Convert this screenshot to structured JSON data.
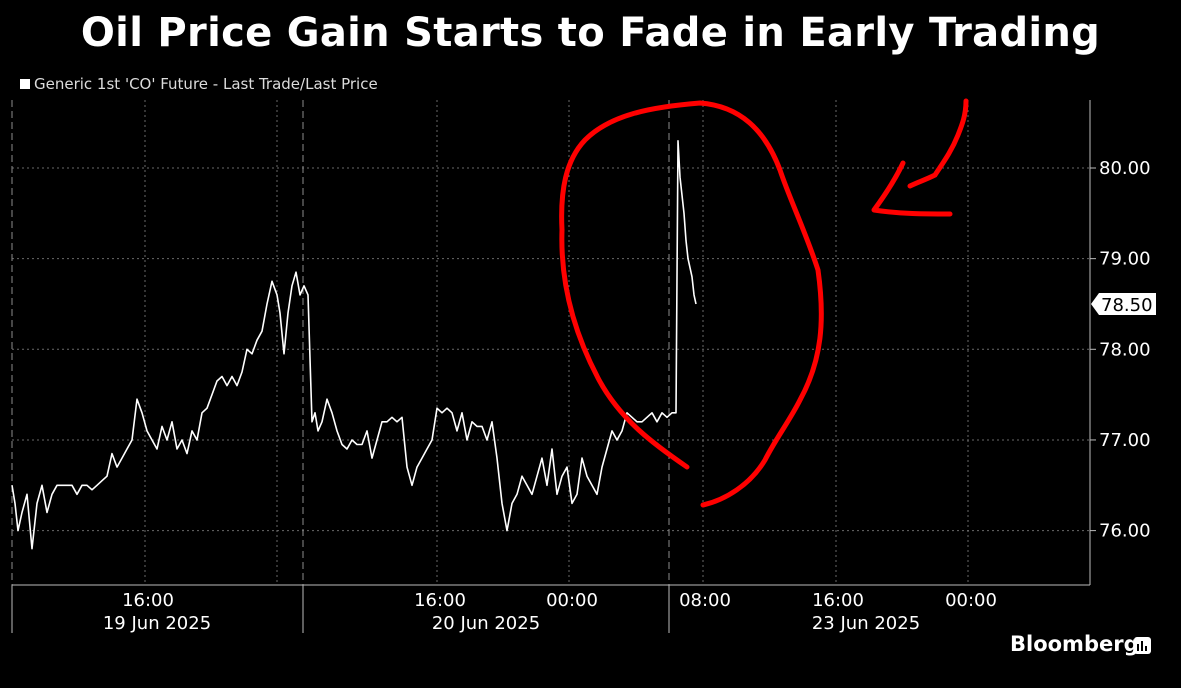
{
  "chart_data": {
    "type": "line",
    "title": "Oil Price Gain Starts to Fade in Early Trading",
    "legend": {
      "label": "Generic 1st 'CO' Future - Last Trade/Last Price",
      "position": "top-left"
    },
    "y_axis": {
      "ylim": [
        75.4,
        80.75
      ],
      "side": "right",
      "ticks": [
        "76.00",
        "77.00",
        "78.00",
        "79.00",
        "80.00"
      ]
    },
    "x_axis": {
      "time_labels": [
        "16:00",
        "16:00",
        "00:00",
        "08:00",
        "16:00",
        "00:00"
      ],
      "date_labels": [
        "19 Jun 2025",
        "20 Jun 2025",
        "23 Jun 2025"
      ]
    },
    "last_price_label": "78.50",
    "grid": true,
    "series": [
      {
        "name": "Generic 1st 'CO' Future - Last Trade/Last Price",
        "x": [
          0,
          3,
          6,
          10,
          15,
          20,
          25,
          30,
          35,
          40,
          45,
          50,
          55,
          60,
          65,
          70,
          75,
          80,
          85,
          90,
          95,
          100,
          105,
          110,
          115,
          120,
          125,
          130,
          135,
          140,
          145,
          150,
          155,
          160,
          165,
          170,
          175,
          180,
          185,
          190,
          195,
          200,
          205,
          210,
          215,
          220,
          225,
          230,
          235,
          240,
          245,
          250,
          255,
          260,
          265,
          268,
          272,
          276,
          280,
          284,
          288,
          292,
          296,
          300,
          303,
          306,
          310,
          315,
          320,
          325,
          330,
          335,
          340,
          345,
          350,
          355,
          360,
          365,
          370,
          375,
          380,
          385,
          390,
          395,
          400,
          405,
          410,
          415,
          420,
          425,
          430,
          435,
          440,
          445,
          450,
          455,
          460,
          465,
          470,
          475,
          480,
          485,
          490,
          495,
          500,
          505,
          510,
          515,
          520,
          525,
          530,
          535,
          540,
          545,
          550,
          555,
          560,
          565,
          570,
          575,
          580,
          585,
          590,
          595,
          600,
          605,
          610,
          615,
          620,
          625,
          630,
          635,
          640,
          645,
          650,
          655,
          660,
          664,
          666,
          668,
          670,
          672,
          674,
          676,
          678,
          680,
          682,
          684
        ],
        "values": [
          76.5,
          76.3,
          76.0,
          76.2,
          76.4,
          75.8,
          76.3,
          76.5,
          76.2,
          76.4,
          76.5,
          76.5,
          76.5,
          76.5,
          76.4,
          76.5,
          76.5,
          76.45,
          76.5,
          76.55,
          76.6,
          76.85,
          76.7,
          76.8,
          76.9,
          77.0,
          77.45,
          77.3,
          77.1,
          77.0,
          76.9,
          77.15,
          77.0,
          77.2,
          76.9,
          77.0,
          76.85,
          77.1,
          77.0,
          77.3,
          77.35,
          77.5,
          77.65,
          77.7,
          77.6,
          77.7,
          77.6,
          77.75,
          78.0,
          77.95,
          78.1,
          78.2,
          78.5,
          78.75,
          78.6,
          78.4,
          77.95,
          78.4,
          78.7,
          78.85,
          78.6,
          78.7,
          78.6,
          77.2,
          77.3,
          77.1,
          77.2,
          77.45,
          77.3,
          77.1,
          76.95,
          76.9,
          77.0,
          76.95,
          76.95,
          77.1,
          76.8,
          77.0,
          77.2,
          77.2,
          77.25,
          77.2,
          77.25,
          76.7,
          76.5,
          76.7,
          76.8,
          76.9,
          77.0,
          77.35,
          77.3,
          77.35,
          77.3,
          77.1,
          77.3,
          77.0,
          77.2,
          77.15,
          77.15,
          77.0,
          77.2,
          76.8,
          76.3,
          76.0,
          76.3,
          76.4,
          76.6,
          76.5,
          76.4,
          76.6,
          76.8,
          76.5,
          76.9,
          76.4,
          76.6,
          76.7,
          76.3,
          76.4,
          76.8,
          76.6,
          76.5,
          76.4,
          76.7,
          76.9,
          77.1,
          77.0,
          77.1,
          77.3,
          77.25,
          77.2,
          77.2,
          77.25,
          77.3,
          77.2,
          77.3,
          77.25,
          77.3,
          77.3,
          80.3,
          79.9,
          79.7,
          79.5,
          79.2,
          79.0,
          78.9,
          78.8,
          78.6,
          78.5
        ]
      }
    ]
  },
  "brand": {
    "name": "Bloomberg"
  }
}
